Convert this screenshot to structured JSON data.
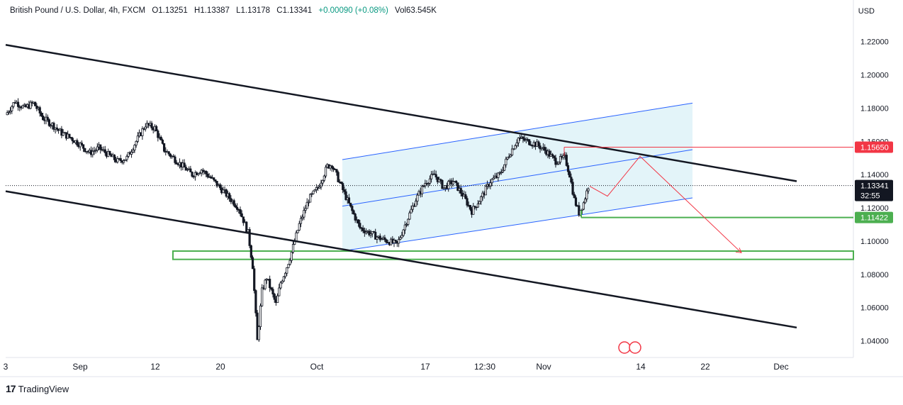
{
  "header": {
    "symbol": "British Pound / U.S. Dollar, 4h, FXCM",
    "open": "O1.13251",
    "high": "H1.13387",
    "low": "L1.13178",
    "close": "C1.13341",
    "change": "+0.00090 (+0.08%)",
    "volume": "Vol63.545K"
  },
  "currency_label": "USD",
  "brand": "TradingView",
  "price_tags": {
    "current": "1.13341",
    "countdown": "32:55",
    "resistance": "1.15650",
    "support": "1.11422"
  },
  "colors": {
    "up": "#089981",
    "down": "#f23645",
    "candle": "#131722",
    "channel_fill": "#e0f3f8",
    "channel_line": "#2962ff",
    "trendline": "#131722",
    "support_zone": "#4caf50",
    "resistance": "#f23645",
    "projection": "#f23645"
  },
  "chart_data": {
    "type": "candlestick",
    "y_axis": {
      "range": [
        1.03,
        1.245
      ],
      "ticks": [
        "1.04000",
        "1.06000",
        "1.08000",
        "1.10000",
        "1.12000",
        "1.14000",
        "1.16000",
        "1.18000",
        "1.20000",
        "1.22000"
      ]
    },
    "x_axis": {
      "tick_labels": [
        "3",
        "Sep",
        "12",
        "20",
        "Oct",
        "17",
        "12:30",
        "Nov",
        "14",
        "22",
        "Dec"
      ]
    },
    "price_path": [
      [
        0,
        1.176
      ],
      [
        4,
        1.184
      ],
      [
        8,
        1.18
      ],
      [
        12,
        1.183
      ],
      [
        16,
        1.174
      ],
      [
        20,
        1.17
      ],
      [
        24,
        1.165
      ],
      [
        28,
        1.162
      ],
      [
        32,
        1.158
      ],
      [
        36,
        1.153
      ],
      [
        40,
        1.156
      ],
      [
        44,
        1.152
      ],
      [
        48,
        1.148
      ],
      [
        52,
        1.15
      ],
      [
        56,
        1.16
      ],
      [
        60,
        1.17
      ],
      [
        64,
        1.168
      ],
      [
        68,
        1.155
      ],
      [
        72,
        1.15
      ],
      [
        76,
        1.145
      ],
      [
        80,
        1.14
      ],
      [
        84,
        1.143
      ],
      [
        88,
        1.138
      ],
      [
        92,
        1.132
      ],
      [
        96,
        1.126
      ],
      [
        100,
        1.12
      ],
      [
        104,
        1.105
      ],
      [
        106,
        1.085
      ],
      [
        108,
        1.04
      ],
      [
        110,
        1.07
      ],
      [
        112,
        1.078
      ],
      [
        114,
        1.07
      ],
      [
        116,
        1.062
      ],
      [
        118,
        1.075
      ],
      [
        120,
        1.082
      ],
      [
        122,
        1.09
      ],
      [
        126,
        1.11
      ],
      [
        130,
        1.125
      ],
      [
        134,
        1.132
      ],
      [
        138,
        1.145
      ],
      [
        140,
        1.146
      ],
      [
        144,
        1.133
      ],
      [
        148,
        1.12
      ],
      [
        152,
        1.108
      ],
      [
        156,
        1.105
      ],
      [
        160,
        1.102
      ],
      [
        164,
        1.1
      ],
      [
        168,
        1.098
      ],
      [
        172,
        1.112
      ],
      [
        176,
        1.125
      ],
      [
        180,
        1.135
      ],
      [
        184,
        1.14
      ],
      [
        188,
        1.132
      ],
      [
        192,
        1.136
      ],
      [
        196,
        1.128
      ],
      [
        200,
        1.118
      ],
      [
        204,
        1.126
      ],
      [
        208,
        1.136
      ],
      [
        212,
        1.14
      ],
      [
        216,
        1.152
      ],
      [
        220,
        1.162
      ],
      [
        224,
        1.16
      ],
      [
        228,
        1.158
      ],
      [
        232,
        1.154
      ],
      [
        236,
        1.148
      ],
      [
        240,
        1.15
      ],
      [
        242,
        1.14
      ],
      [
        244,
        1.125
      ],
      [
        246,
        1.117
      ],
      [
        248,
        1.123
      ],
      [
        250,
        1.133
      ]
    ],
    "trend_channel": {
      "upper": [
        [
          1.218,
          0
        ],
        [
          1.136,
          1
        ]
      ],
      "lower": [
        [
          1.13,
          0
        ],
        [
          1.048,
          1
        ]
      ]
    },
    "ascending_channel": {
      "upper": [
        1.149,
        1.183
      ],
      "middle": [
        1.121,
        1.155
      ],
      "lower": [
        1.094,
        1.126
      ]
    },
    "support_zone": [
      1.089,
      1.094
    ],
    "resistance_level": 1.1565,
    "support_level": 1.1142,
    "current_price": 1.13341,
    "projection_path": [
      [
        1.133,
        "now"
      ],
      [
        1.127,
        "step1"
      ],
      [
        1.151,
        "step2"
      ],
      [
        1.093,
        "target"
      ]
    ]
  }
}
